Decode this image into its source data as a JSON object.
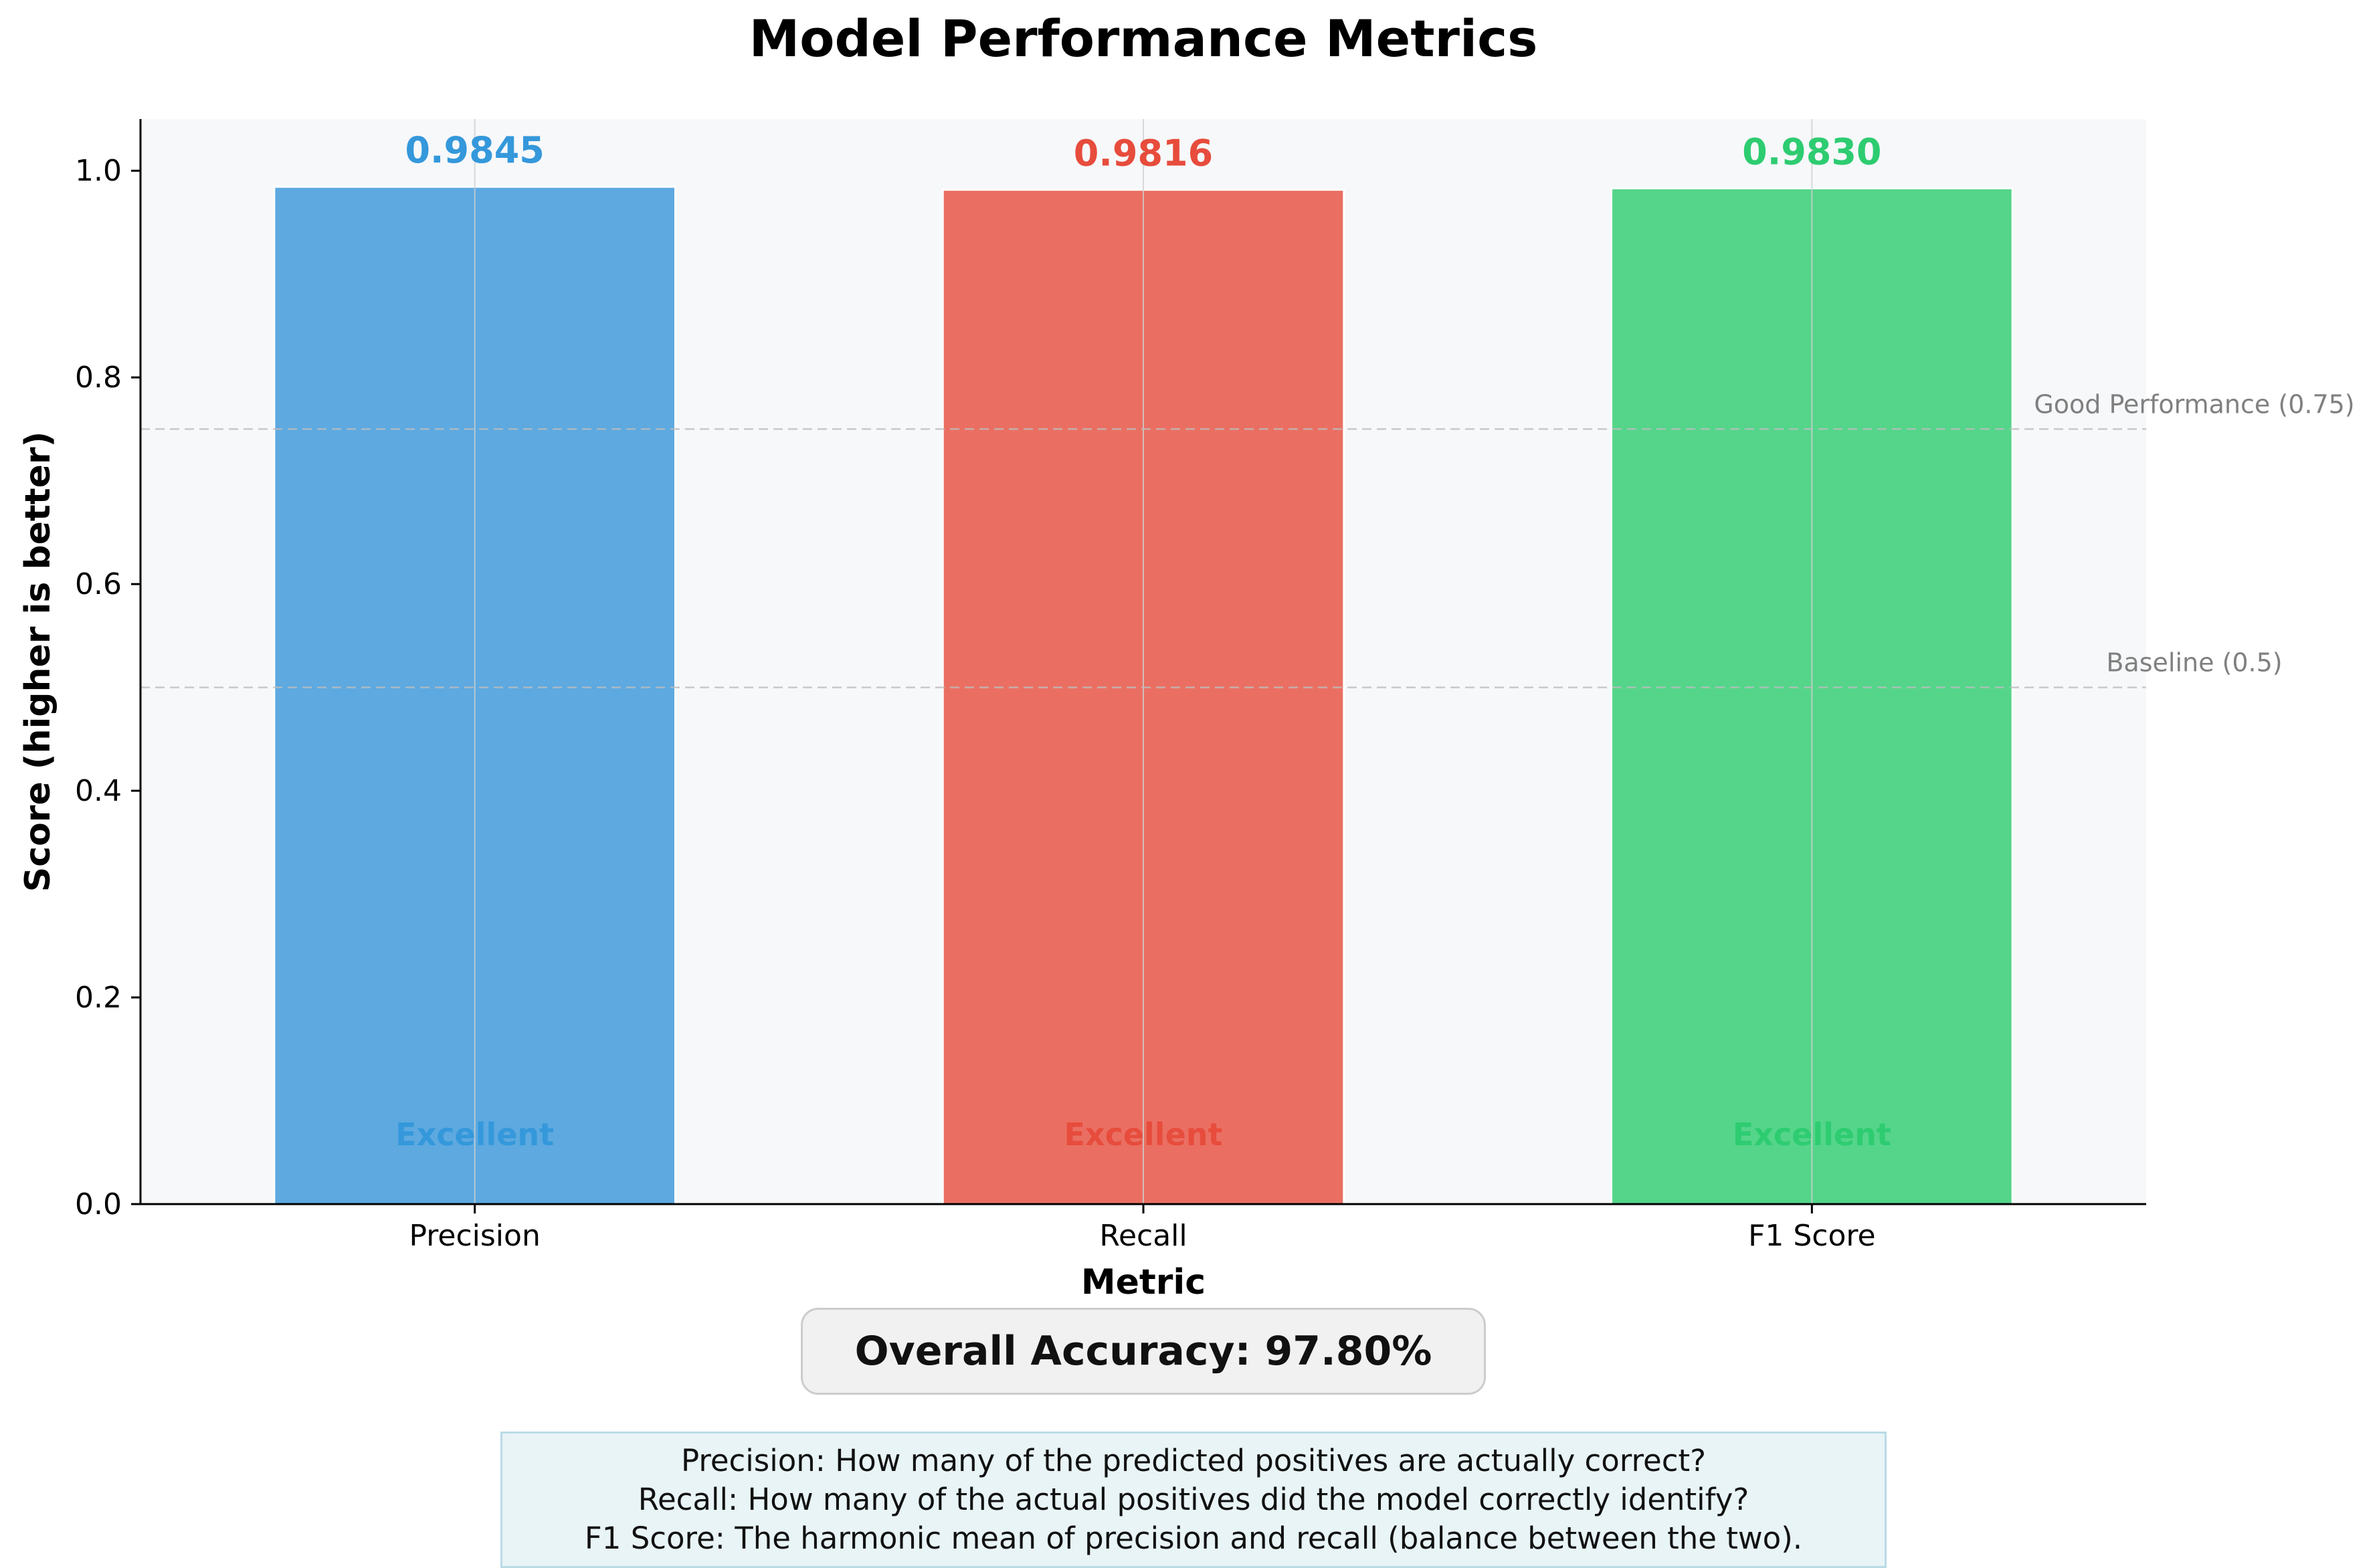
{
  "chart_data": {
    "type": "bar",
    "title": "Model Performance Metrics",
    "xlabel": "Metric",
    "ylabel": "Score (higher is better)",
    "categories": [
      "Precision",
      "Recall",
      "F1 Score"
    ],
    "values": [
      0.9845,
      0.9816,
      0.983
    ],
    "value_labels": [
      "0.9845",
      "0.9816",
      "0.9830"
    ],
    "bar_colors": [
      "#5DA9E0",
      "#EA6F62",
      "#54D58A"
    ],
    "label_colors": [
      "#3498DB",
      "#E74C3C",
      "#2ECC71"
    ],
    "bar_status_labels": [
      "Excellent",
      "Excellent",
      "Excellent"
    ],
    "ylim": [
      0,
      1.05
    ],
    "yticks": [
      "0.0",
      "0.2",
      "0.4",
      "0.6",
      "0.8",
      "1.0"
    ],
    "ytick_values": [
      0,
      0.2,
      0.4,
      0.6,
      0.8,
      1.0
    ],
    "reference_lines": [
      {
        "value": 0.75,
        "label": "Good Performance (0.75)"
      },
      {
        "value": 0.5,
        "label": "Baseline (0.5)"
      }
    ],
    "grid": true,
    "plot_background": "#F7F8FA"
  },
  "summary": {
    "overall_accuracy": "Overall Accuracy: 97.80%"
  },
  "definitions": {
    "precision": "Precision: How many of the predicted positives are actually correct?",
    "recall": "Recall: How many of the actual positives did the model correctly identify?",
    "f1": "F1 Score: The harmonic mean of precision and recall (balance between the two)."
  }
}
